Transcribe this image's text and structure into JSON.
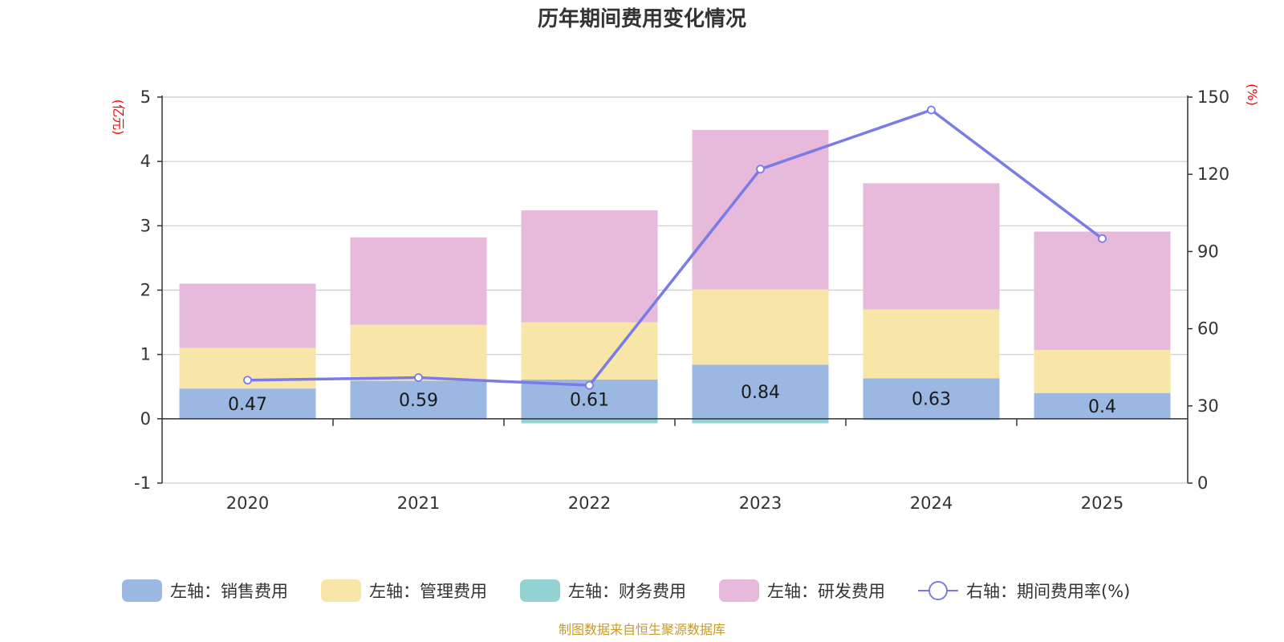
{
  "chart_data": {
    "type": "bar",
    "title": "历年期间费用变化情况",
    "categories": [
      "2020",
      "2021",
      "2022",
      "2023",
      "2024",
      "2025"
    ],
    "left_axis": {
      "unit_label": "(亿元)",
      "ylim": [
        -1,
        5
      ],
      "ticks": [
        "5",
        "4",
        "3",
        "2",
        "1",
        "0",
        "-1"
      ]
    },
    "right_axis": {
      "unit_label": "(%)",
      "ylim": [
        0,
        150
      ],
      "ticks": [
        "150",
        "120",
        "90",
        "60",
        "30",
        "0"
      ]
    },
    "series": [
      {
        "name": "销售费用",
        "legend": "左轴：销售费用",
        "axis": "left",
        "color": "#9bb8e2",
        "values": [
          0.47,
          0.59,
          0.61,
          0.84,
          0.63,
          0.4
        ],
        "labels": [
          "0.47",
          "0.59",
          "0.61",
          "0.84",
          "0.63",
          "0.4"
        ]
      },
      {
        "name": "管理费用",
        "legend": "左轴：管理费用",
        "axis": "left",
        "color": "#f8e6a8",
        "values": [
          0.63,
          0.87,
          0.89,
          1.17,
          1.07,
          0.67
        ]
      },
      {
        "name": "财务费用",
        "legend": "左轴：财务费用",
        "axis": "left",
        "color": "#93d3d3",
        "values": [
          0.0,
          0.0,
          -0.07,
          -0.07,
          -0.02,
          0.0
        ]
      },
      {
        "name": "研发费用",
        "legend": "左轴：研发费用",
        "axis": "left",
        "color": "#e7b9da",
        "values": [
          1.0,
          1.36,
          1.74,
          2.48,
          1.96,
          1.84
        ]
      },
      {
        "name": "期间费用率(%)",
        "legend": "右轴：期间费用率(%)",
        "axis": "right",
        "type": "line",
        "color": "#7b7be8",
        "values": [
          40,
          41,
          38,
          122,
          145,
          95
        ]
      }
    ],
    "source": "制图数据来自恒生聚源数据库"
  }
}
